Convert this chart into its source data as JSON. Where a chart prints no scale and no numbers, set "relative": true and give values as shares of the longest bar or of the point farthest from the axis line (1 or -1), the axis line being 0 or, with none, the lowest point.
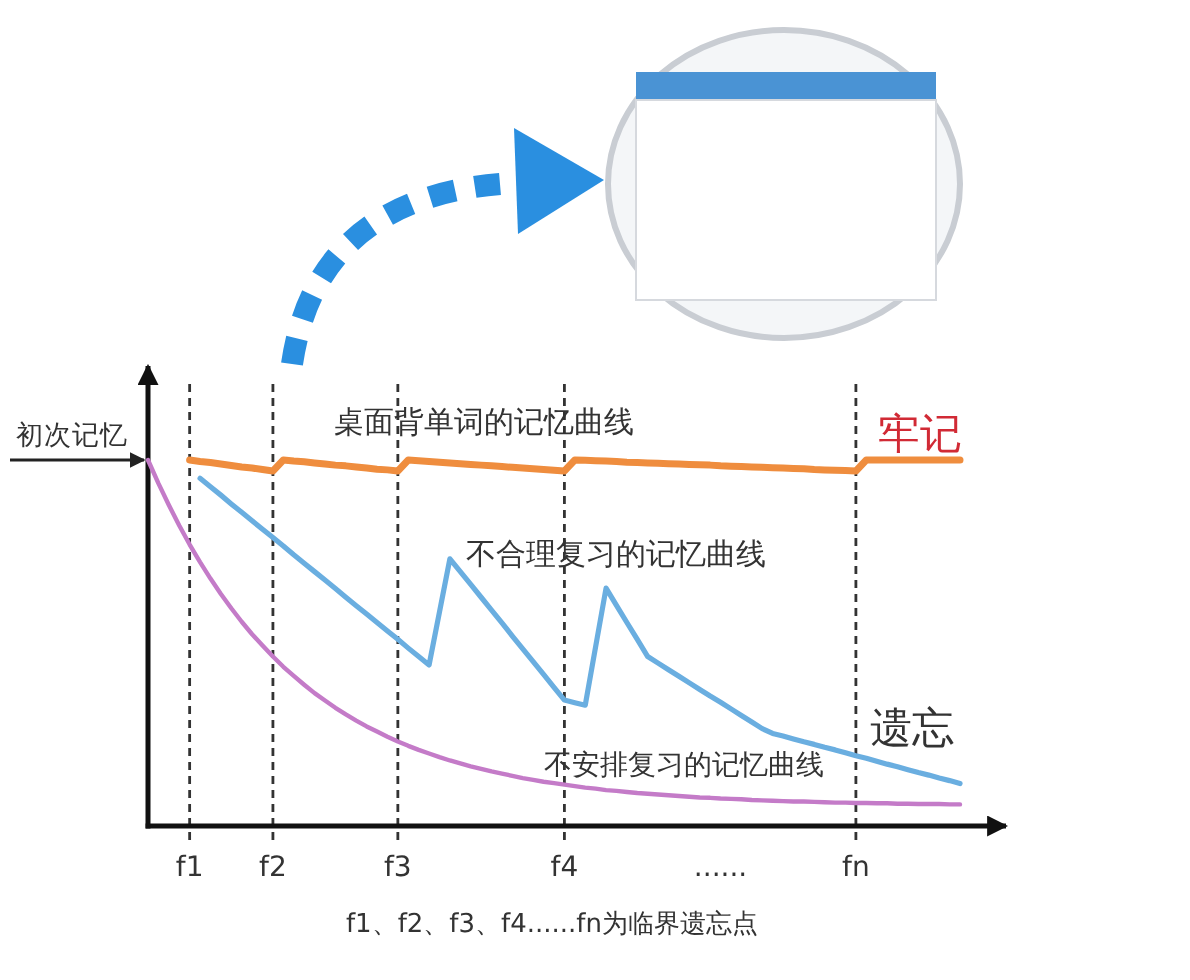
{
  "chart_data": {
    "type": "line",
    "relative": true,
    "xlabel": "f1、f2、f3、f4......fn为临界遗忘点",
    "categories": [
      null,
      null,
      null,
      null,
      "f1",
      null,
      null,
      null,
      null,
      null,
      null,
      null,
      "f2",
      null,
      null,
      null,
      null,
      null,
      null,
      null,
      null,
      null,
      null,
      null,
      "f3",
      null,
      null,
      null,
      null,
      null,
      null,
      null,
      null,
      null,
      null,
      null,
      null,
      null,
      null,
      null,
      "f4",
      null,
      null,
      null,
      null,
      null,
      null,
      null,
      null,
      null,
      null,
      null,
      null,
      null,
      null,
      "......",
      null,
      null,
      null,
      null,
      null,
      null,
      null,
      null,
      null,
      null,
      null,
      null,
      "fn",
      null,
      null,
      null,
      null,
      null,
      null,
      null,
      null,
      null,
      null
    ],
    "ref_lines": [
      {
        "axis": "x",
        "value": "f1",
        "line_style": "dashed"
      },
      {
        "axis": "x",
        "value": "f2",
        "line_style": "dashed"
      },
      {
        "axis": "x",
        "value": "f3",
        "line_style": "dashed"
      },
      {
        "axis": "x",
        "value": "f4",
        "line_style": "dashed"
      },
      {
        "axis": "x",
        "value": "fn",
        "line_style": "dashed"
      }
    ],
    "series": [
      {
        "name": "桌面背单词的记忆曲线",
        "color": "#ef8d3e",
        "values": [
          null,
          null,
          null,
          null,
          1.0,
          0.996,
          0.993,
          0.989,
          0.985,
          0.981,
          0.978,
          0.974,
          0.97,
          1.0,
          0.997,
          0.995,
          0.992,
          0.989,
          0.986,
          0.984,
          0.981,
          0.978,
          0.975,
          0.973,
          0.97,
          1.0,
          0.998,
          0.996,
          0.994,
          0.992,
          0.99,
          0.988,
          0.986,
          0.984,
          0.982,
          0.98,
          0.978,
          0.976,
          0.974,
          0.972,
          0.97,
          1.0,
          0.999,
          0.998,
          0.997,
          0.996,
          0.994,
          0.993,
          0.992,
          0.991,
          0.99,
          0.989,
          0.988,
          0.987,
          0.986,
          0.984,
          0.983,
          0.982,
          0.981,
          0.98,
          0.979,
          0.978,
          0.977,
          0.976,
          0.974,
          0.973,
          0.972,
          0.971,
          0.97,
          1.0,
          1.0,
          1.0,
          1.0,
          1.0,
          1.0,
          1.0,
          1.0,
          1.0,
          1.0
        ]
      },
      {
        "name": "不合理复习的记忆曲线",
        "color": "#6aaee0",
        "values": [
          null,
          null,
          null,
          null,
          null,
          0.95,
          0.927,
          0.904,
          0.88,
          0.857,
          0.834,
          0.811,
          0.788,
          0.765,
          0.741,
          0.718,
          0.695,
          0.672,
          0.649,
          0.625,
          0.602,
          0.579,
          0.556,
          0.533,
          0.51,
          0.486,
          0.463,
          0.44,
          0.585,
          0.73,
          0.695,
          0.66,
          0.625,
          0.59,
          0.555,
          0.519,
          0.484,
          0.449,
          0.414,
          0.379,
          0.344,
          0.337,
          0.33,
          0.49,
          0.65,
          0.603,
          0.556,
          0.51,
          0.463,
          0.445,
          0.427,
          0.409,
          0.391,
          0.373,
          0.355,
          0.338,
          0.32,
          0.302,
          0.284,
          0.266,
          0.253,
          0.246,
          0.238,
          0.23,
          0.223,
          0.215,
          0.208,
          0.2,
          0.192,
          0.185,
          0.177,
          0.169,
          0.162,
          0.154,
          0.146,
          0.139,
          0.131,
          0.124,
          0.116
        ]
      },
      {
        "name": "不安排复习的记忆曲线",
        "color": "#c47bc8",
        "values": [
          1.0,
          0.936,
          0.877,
          0.821,
          0.769,
          0.721,
          0.676,
          0.634,
          0.595,
          0.558,
          0.524,
          0.493,
          0.463,
          0.435,
          0.41,
          0.386,
          0.363,
          0.343,
          0.323,
          0.305,
          0.288,
          0.272,
          0.258,
          0.244,
          0.231,
          0.219,
          0.208,
          0.198,
          0.188,
          0.179,
          0.171,
          0.163,
          0.156,
          0.149,
          0.143,
          0.137,
          0.131,
          0.126,
          0.121,
          0.117,
          0.113,
          0.109,
          0.105,
          0.102,
          0.098,
          0.096,
          0.093,
          0.09,
          0.088,
          0.086,
          0.084,
          0.082,
          0.08,
          0.078,
          0.077,
          0.075,
          0.074,
          0.073,
          0.071,
          0.07,
          0.069,
          0.068,
          0.067,
          0.067,
          0.066,
          0.065,
          0.064,
          0.064,
          0.063,
          0.063,
          0.062,
          0.062,
          0.061,
          0.061,
          0.06,
          0.06,
          0.06,
          0.059,
          0.059
        ]
      }
    ],
    "annotations": [
      "初次记忆",
      {
        "text": "牢记",
        "y": 1
      },
      "遗忘"
    ]
  }
}
